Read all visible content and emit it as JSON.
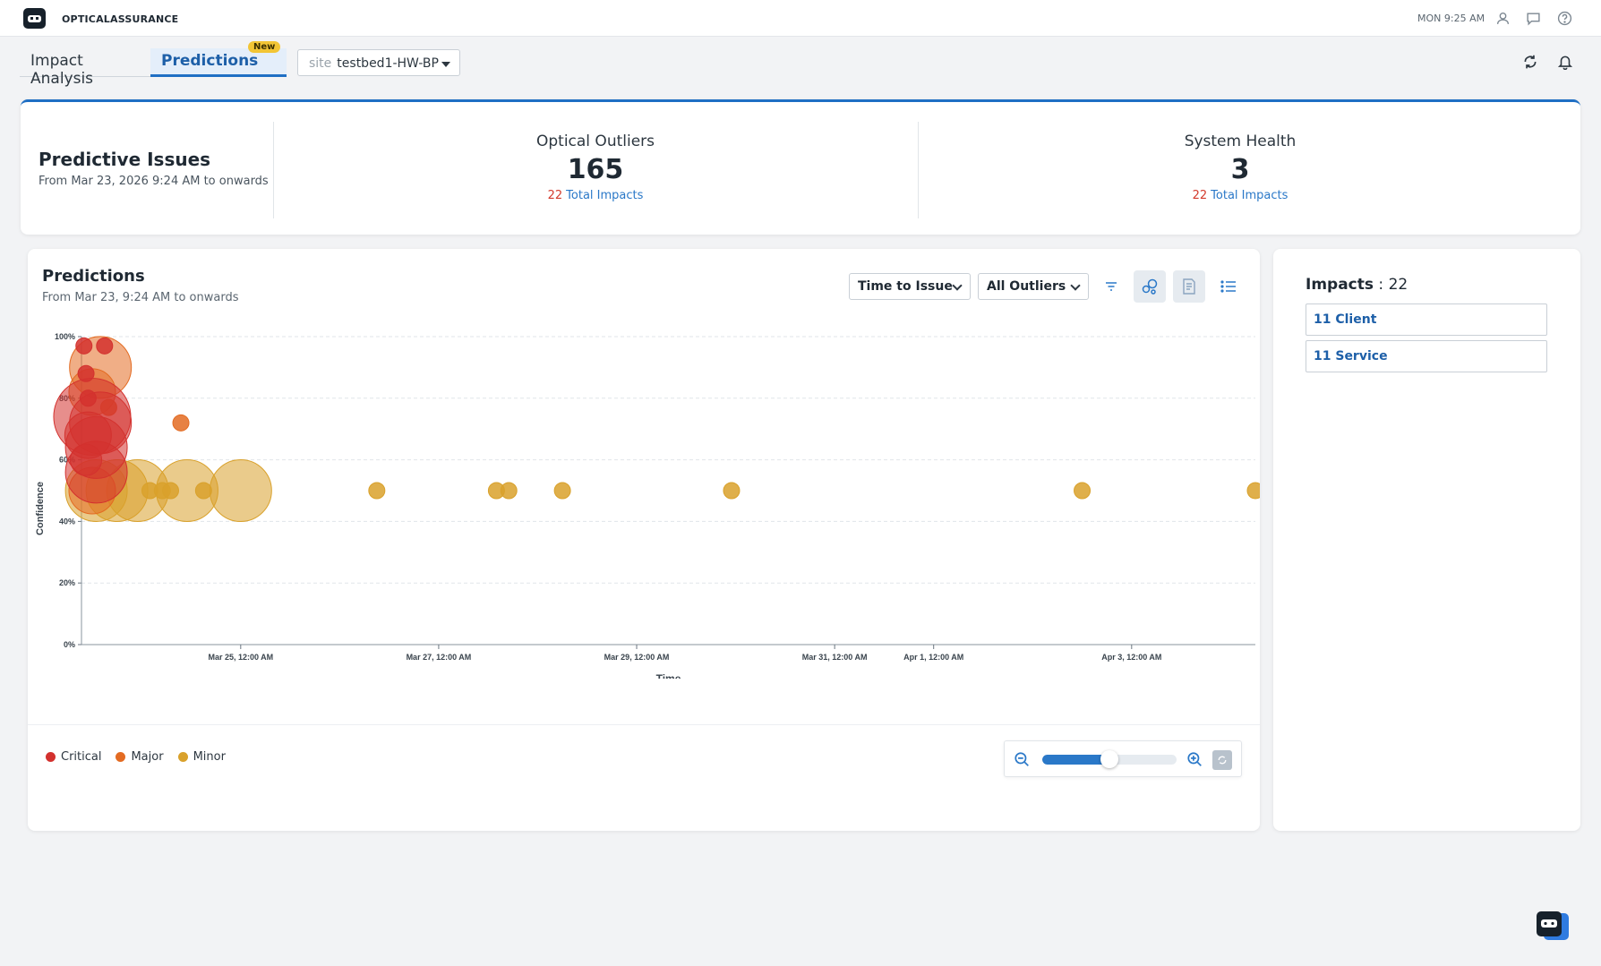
{
  "app": {
    "name": "OPTICALASSURANCE",
    "clock": "MON 9:25 AM"
  },
  "tabs": [
    {
      "label": "Impact Analysis"
    },
    {
      "label": "Predictions",
      "badge": "New"
    }
  ],
  "site_filter": {
    "prefix": "site",
    "value": "testbed1-HW-BP"
  },
  "summary": {
    "title": "Predictive Issues",
    "subtitle": "From Mar 23, 2026 9:24 AM to onwards",
    "optical": {
      "label": "Optical Outliers",
      "value": "165",
      "impacts_count": "22",
      "impacts_label": "Total Impacts"
    },
    "system": {
      "label": "System Health",
      "value": "3",
      "impacts_count": "22",
      "impacts_label": "Total Impacts"
    }
  },
  "predictions": {
    "title": "Predictions",
    "subtitle": "From Mar 23, 9:24 AM to onwards",
    "sort_select": "Time to Issue",
    "outlier_select": "All Outliers"
  },
  "legend": [
    {
      "label": "Critical",
      "color": "#d3312e"
    },
    {
      "label": "Major",
      "color": "#e36b22"
    },
    {
      "label": "Minor",
      "color": "#d9a12b"
    }
  ],
  "zoom": {
    "level": 0.5
  },
  "impacts": {
    "label": "Impacts",
    "total": "22",
    "items": [
      {
        "label": "11 Client"
      },
      {
        "label": "11 Service"
      }
    ]
  },
  "chart_data": {
    "type": "scatter",
    "xlabel": "Time",
    "ylabel": "Confidence",
    "x_ticks": [
      "Mar 25, 12:00 AM",
      "Mar 27, 12:00 AM",
      "Mar 29, 12:00 AM",
      "Mar 31, 12:00 AM",
      "Apr 1, 12:00 AM",
      "Apr 3, 12:00 AM"
    ],
    "y_ticks": [
      "0%",
      "20%",
      "40%",
      "60%",
      "80%",
      "100%"
    ],
    "xlim": [
      "2026-03-23T09:24",
      "2026-04-04T06:00"
    ],
    "ylim": [
      0,
      100
    ],
    "grid": true,
    "series": [
      {
        "name": "Critical",
        "color": "#d3312e",
        "points": [
          {
            "x": "2026-03-23T10:00",
            "y": 97,
            "size": 1
          },
          {
            "x": "2026-03-23T15:00",
            "y": 97,
            "size": 1
          },
          {
            "x": "2026-03-23T10:30",
            "y": 88,
            "size": 1
          },
          {
            "x": "2026-03-23T11:00",
            "y": 80,
            "size": 1
          },
          {
            "x": "2026-03-23T12:00",
            "y": 74,
            "size": 5
          },
          {
            "x": "2026-03-23T14:00",
            "y": 72,
            "size": 4
          },
          {
            "x": "2026-03-23T11:00",
            "y": 68,
            "size": 3
          },
          {
            "x": "2026-03-23T13:00",
            "y": 64,
            "size": 4
          },
          {
            "x": "2026-03-23T10:30",
            "y": 60,
            "size": 2
          },
          {
            "x": "2026-03-23T13:00",
            "y": 56,
            "size": 4
          }
        ]
      },
      {
        "name": "Major",
        "color": "#e36b22",
        "points": [
          {
            "x": "2026-03-23T14:00",
            "y": 90,
            "size": 4
          },
          {
            "x": "2026-03-23T12:00",
            "y": 82,
            "size": 3
          },
          {
            "x": "2026-03-23T16:00",
            "y": 77,
            "size": 1
          },
          {
            "x": "2026-03-24T09:30",
            "y": 72,
            "size": 1
          },
          {
            "x": "2026-03-23T12:00",
            "y": 50,
            "size": 3
          }
        ]
      },
      {
        "name": "Minor",
        "color": "#d9a12b",
        "points": [
          {
            "x": "2026-03-23T13:00",
            "y": 50,
            "size": 4
          },
          {
            "x": "2026-03-23T18:00",
            "y": 50,
            "size": 4
          },
          {
            "x": "2026-03-23T23:00",
            "y": 50,
            "size": 4
          },
          {
            "x": "2026-03-24T02:00",
            "y": 50,
            "size": 1
          },
          {
            "x": "2026-03-24T05:00",
            "y": 50,
            "size": 1
          },
          {
            "x": "2026-03-24T07:00",
            "y": 50,
            "size": 1
          },
          {
            "x": "2026-03-24T11:00",
            "y": 50,
            "size": 4
          },
          {
            "x": "2026-03-24T15:00",
            "y": 50,
            "size": 1
          },
          {
            "x": "2026-03-25T00:00",
            "y": 50,
            "size": 4
          },
          {
            "x": "2026-03-26T09:00",
            "y": 50,
            "size": 1
          },
          {
            "x": "2026-03-27T14:00",
            "y": 50,
            "size": 1
          },
          {
            "x": "2026-03-27T17:00",
            "y": 50,
            "size": 1
          },
          {
            "x": "2026-03-28T06:00",
            "y": 50,
            "size": 1
          },
          {
            "x": "2026-03-29T23:00",
            "y": 50,
            "size": 1
          },
          {
            "x": "2026-04-02T12:00",
            "y": 50,
            "size": 1
          },
          {
            "x": "2026-04-04T06:00",
            "y": 50,
            "size": 1
          }
        ]
      }
    ]
  }
}
